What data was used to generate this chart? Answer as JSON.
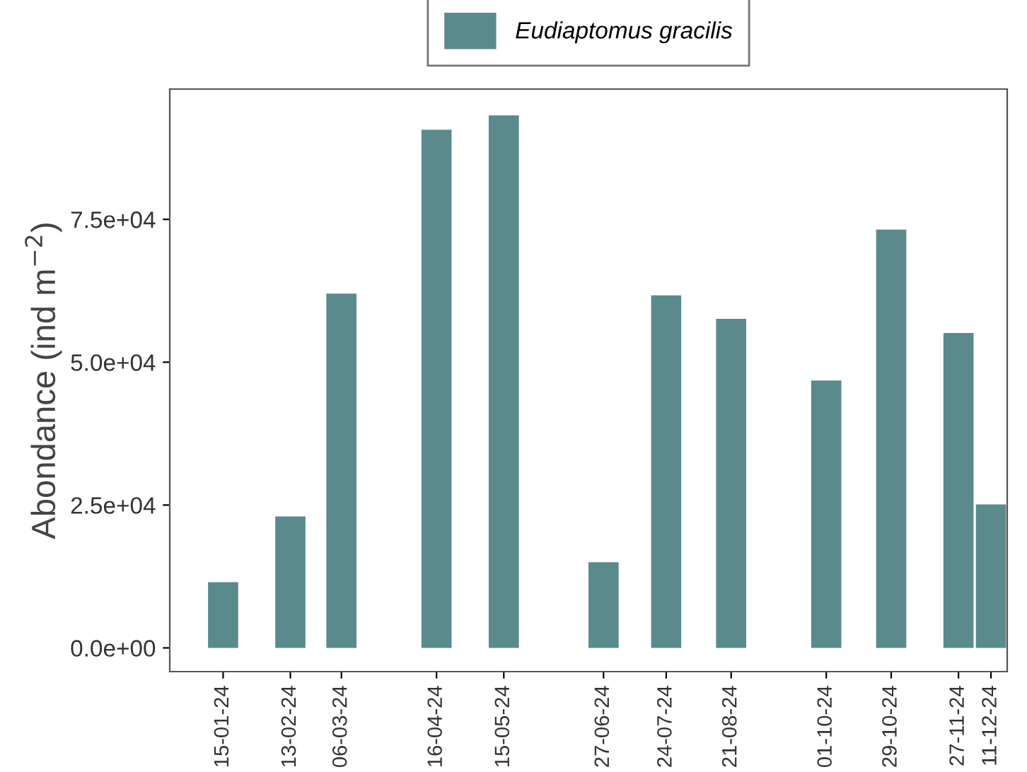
{
  "chart_data": {
    "type": "bar",
    "ylabel": "Abondance (ind m$^{−2}$)",
    "x": [
      "2024-01-15",
      "2024-02-13",
      "2024-03-06",
      "2024-04-16",
      "2024-05-15",
      "2024-06-27",
      "2024-07-24",
      "2024-08-21",
      "2024-10-01",
      "2024-10-29",
      "2024-11-27",
      "2024-12-11"
    ],
    "series": [
      {
        "name": "Eudiaptomus gracilis",
        "color": "#5a8a8c",
        "values": [
          11500,
          23000,
          62000,
          90700,
          93200,
          15000,
          61700,
          57600,
          46800,
          73200,
          55100,
          25100
        ]
      }
    ],
    "xlim": [
      "2023-12-23",
      "2024-12-18"
    ],
    "xticks": [
      {
        "value": "2024-01-15",
        "label": "15-01-24"
      },
      {
        "value": "2024-02-13",
        "label": "13-02-24"
      },
      {
        "value": "2024-03-06",
        "label": "06-03-24"
      },
      {
        "value": "2024-04-16",
        "label": "16-04-24"
      },
      {
        "value": "2024-05-15",
        "label": "15-05-24"
      },
      {
        "value": "2024-06-27",
        "label": "27-06-24"
      },
      {
        "value": "2024-07-24",
        "label": "24-07-24"
      },
      {
        "value": "2024-08-21",
        "label": "21-08-24"
      },
      {
        "value": "2024-10-01",
        "label": "01-10-24"
      },
      {
        "value": "2024-10-29",
        "label": "29-10-24"
      },
      {
        "value": "2024-11-27",
        "label": "27-11-24"
      },
      {
        "value": "2024-12-11",
        "label": "11-12-24"
      }
    ],
    "ylim": [
      -4150,
      97800
    ],
    "yticks": [
      {
        "value": 0,
        "label": "0.0e+00"
      },
      {
        "value": 25000,
        "label": "2.5e+04"
      },
      {
        "value": 50000,
        "label": "5.0e+04"
      },
      {
        "value": 75000,
        "label": "7.5e+04"
      }
    ],
    "grid": false,
    "legend": "top"
  }
}
